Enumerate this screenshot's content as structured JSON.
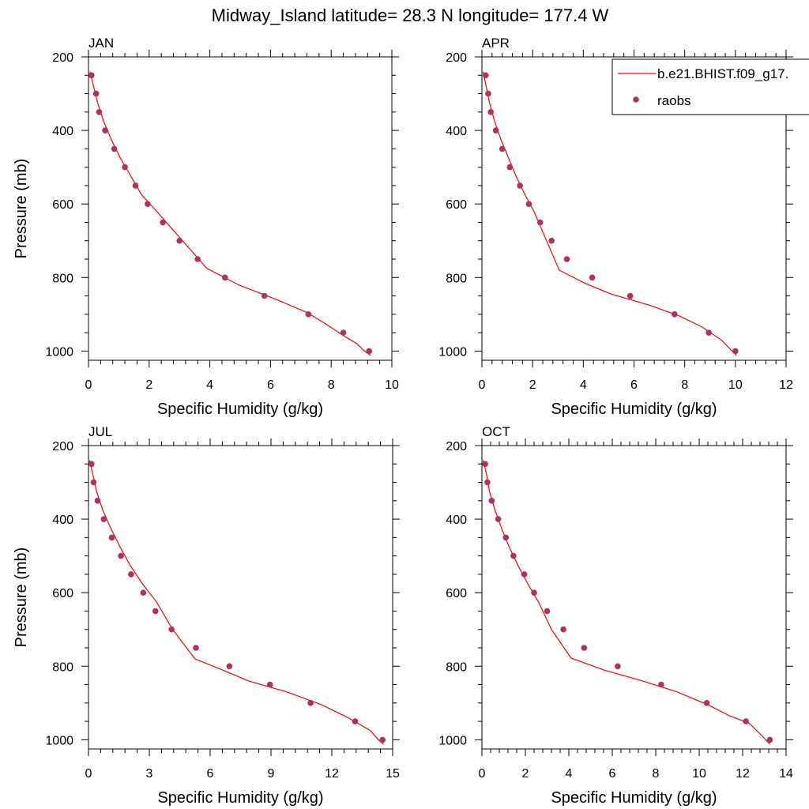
{
  "title": "Midway_Island  latitude= 28.3 N longitude= 177.4 W",
  "colors": {
    "model_line": "#ff0000",
    "obs_marker": "#b03060",
    "axis": "#000000"
  },
  "legend": {
    "model_label": "b.e21.BHIST.f09_g17.",
    "obs_label": "raobs"
  },
  "chart_data": [
    {
      "type": "line",
      "panel": "JAN",
      "xlabel": "Specific Humidity (g/kg)",
      "ylabel": "Pressure (mb)",
      "xlim": [
        0,
        10
      ],
      "ylim": [
        1025,
        200
      ],
      "xticks": [
        0,
        2,
        4,
        6,
        8,
        10
      ],
      "yticks": [
        200,
        400,
        600,
        800,
        1000
      ],
      "series": [
        {
          "name": "b.e21.BHIST.f09_g17.",
          "kind": "line",
          "x": [
            0.05,
            0.15,
            0.3,
            0.5,
            0.75,
            1.05,
            1.4,
            1.75,
            2.25,
            3.1,
            3.9,
            4.95,
            6.2,
            7.2,
            7.8,
            8.35,
            8.85,
            9.1,
            9.3
          ],
          "y": [
            240,
            275,
            325,
            375,
            425,
            475,
            525,
            575,
            620,
            700,
            775,
            820,
            860,
            895,
            925,
            955,
            980,
            1000,
            1012
          ]
        },
        {
          "name": "raobs",
          "kind": "scatter",
          "x": [
            0.1,
            0.25,
            0.35,
            0.55,
            0.85,
            1.2,
            1.55,
            1.95,
            2.45,
            3.0,
            3.6,
            4.5,
            5.8,
            7.25,
            8.4,
            9.25
          ],
          "y": [
            250,
            300,
            350,
            400,
            450,
            500,
            550,
            600,
            650,
            700,
            750,
            800,
            850,
            900,
            950,
            1000
          ]
        }
      ]
    },
    {
      "type": "line",
      "panel": "APR",
      "xlabel": "Specific Humidity (g/kg)",
      "ylabel": "",
      "xlim": [
        0,
        12
      ],
      "ylim": [
        1025,
        200
      ],
      "xticks": [
        0,
        2,
        4,
        6,
        8,
        10,
        12
      ],
      "yticks": [
        200,
        400,
        600,
        800,
        1000
      ],
      "series": [
        {
          "name": "b.e21.BHIST.f09_g17.",
          "kind": "line",
          "x": [
            0.05,
            0.15,
            0.3,
            0.5,
            0.75,
            1.05,
            1.35,
            1.7,
            2.05,
            2.55,
            3.05,
            4.05,
            5.1,
            6.6,
            7.8,
            8.7,
            9.45,
            9.8,
            10.05
          ],
          "y": [
            240,
            275,
            325,
            375,
            425,
            475,
            525,
            575,
            620,
            700,
            780,
            815,
            845,
            875,
            905,
            935,
            970,
            995,
            1012
          ]
        },
        {
          "name": "raobs",
          "kind": "scatter",
          "x": [
            0.15,
            0.25,
            0.35,
            0.55,
            0.8,
            1.1,
            1.5,
            1.85,
            2.3,
            2.75,
            3.35,
            4.35,
            5.85,
            7.6,
            8.95,
            10.0
          ],
          "y": [
            250,
            300,
            350,
            400,
            450,
            500,
            550,
            600,
            650,
            700,
            750,
            800,
            850,
            900,
            950,
            1000
          ]
        }
      ]
    },
    {
      "type": "line",
      "panel": "JUL",
      "xlabel": "Specific Humidity (g/kg)",
      "ylabel": "Pressure (mb)",
      "xlim": [
        0,
        15
      ],
      "ylim": [
        1025,
        200
      ],
      "xticks": [
        0,
        3,
        6,
        9,
        12,
        15
      ],
      "yticks": [
        200,
        400,
        600,
        800,
        1000
      ],
      "series": [
        {
          "name": "b.e21.BHIST.f09_g17.",
          "kind": "line",
          "x": [
            0.05,
            0.2,
            0.4,
            0.7,
            1.1,
            1.55,
            2.05,
            2.65,
            3.35,
            4.15,
            5.25,
            6.6,
            7.9,
            9.8,
            11.5,
            12.8,
            13.9,
            14.3,
            14.55
          ],
          "y": [
            240,
            275,
            325,
            375,
            425,
            475,
            525,
            575,
            625,
            700,
            780,
            810,
            840,
            870,
            905,
            940,
            975,
            1000,
            1012
          ]
        },
        {
          "name": "raobs",
          "kind": "scatter",
          "x": [
            0.15,
            0.25,
            0.45,
            0.75,
            1.15,
            1.6,
            2.1,
            2.7,
            3.3,
            4.1,
            5.3,
            6.95,
            8.95,
            10.95,
            13.15,
            14.5
          ],
          "y": [
            250,
            300,
            350,
            400,
            450,
            500,
            550,
            600,
            650,
            700,
            750,
            800,
            850,
            900,
            950,
            1000
          ]
        }
      ]
    },
    {
      "type": "line",
      "panel": "OCT",
      "xlabel": "Specific Humidity (g/kg)",
      "ylabel": "",
      "xlim": [
        0,
        14
      ],
      "ylim": [
        1025,
        200
      ],
      "xticks": [
        0,
        2,
        4,
        6,
        8,
        10,
        12,
        14
      ],
      "yticks": [
        200,
        400,
        600,
        800,
        1000
      ],
      "series": [
        {
          "name": "b.e21.BHIST.f09_g17.",
          "kind": "line",
          "x": [
            0.05,
            0.2,
            0.35,
            0.6,
            0.9,
            1.25,
            1.65,
            2.1,
            2.6,
            3.2,
            4.1,
            5.6,
            7.4,
            9.0,
            10.4,
            11.4,
            12.3,
            12.9,
            13.25
          ],
          "y": [
            240,
            275,
            325,
            375,
            425,
            475,
            525,
            575,
            625,
            700,
            778,
            810,
            840,
            870,
            905,
            935,
            955,
            990,
            1012
          ]
        },
        {
          "name": "raobs",
          "kind": "scatter",
          "x": [
            0.15,
            0.25,
            0.45,
            0.75,
            1.1,
            1.45,
            1.95,
            2.4,
            3.0,
            3.75,
            4.7,
            6.25,
            8.25,
            10.35,
            12.15,
            13.25
          ],
          "y": [
            250,
            300,
            350,
            400,
            450,
            500,
            550,
            600,
            650,
            700,
            750,
            800,
            850,
            900,
            950,
            1000
          ]
        }
      ]
    }
  ]
}
